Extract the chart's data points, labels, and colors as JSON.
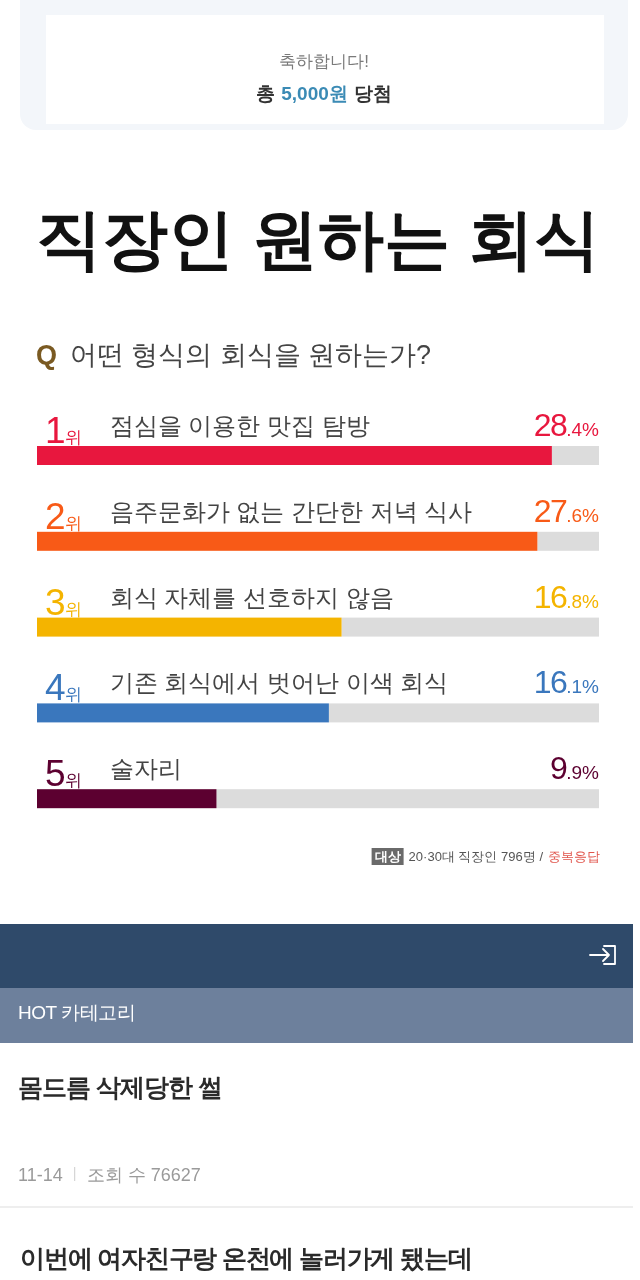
{
  "chart_data": {
    "type": "bar",
    "orientation": "horizontal",
    "title": "직장인 원하는 회식",
    "subtitle": "Q 어떤 형식의 회식을 원하는가?",
    "categories": [
      "1위 점심을 이용한 맛집 탐방",
      "2위 음주문화가 없는 간단한 저녁 식사",
      "3위 회식 자체를 선호하지 않음",
      "4위 기존 회식에서 벗어난 이색 회식",
      "5위 술자리"
    ],
    "values": [
      28.4,
      27.6,
      16.8,
      16.1,
      9.9
    ],
    "colors": [
      "#e8173e",
      "#f85a17",
      "#f4b400",
      "#3a77bd",
      "#5c0030"
    ],
    "value_labels": [
      "28.4%",
      "27.6%",
      "16.8%",
      "16.1%",
      "9.9%"
    ],
    "xlim": [
      0,
      31
    ],
    "annotations": [
      "축하합니다!",
      "총",
      "5,000원",
      "당첨",
      "대상",
      "20·30대 직장인 796명 /",
      "중복응답",
      "HOT 카테고리",
      "몸드름 삭제당한 썰",
      "11-14",
      "조회 수 76627",
      "이번에 여자친구랑 온천에 놀러가게 됐는데"
    ]
  }
}
